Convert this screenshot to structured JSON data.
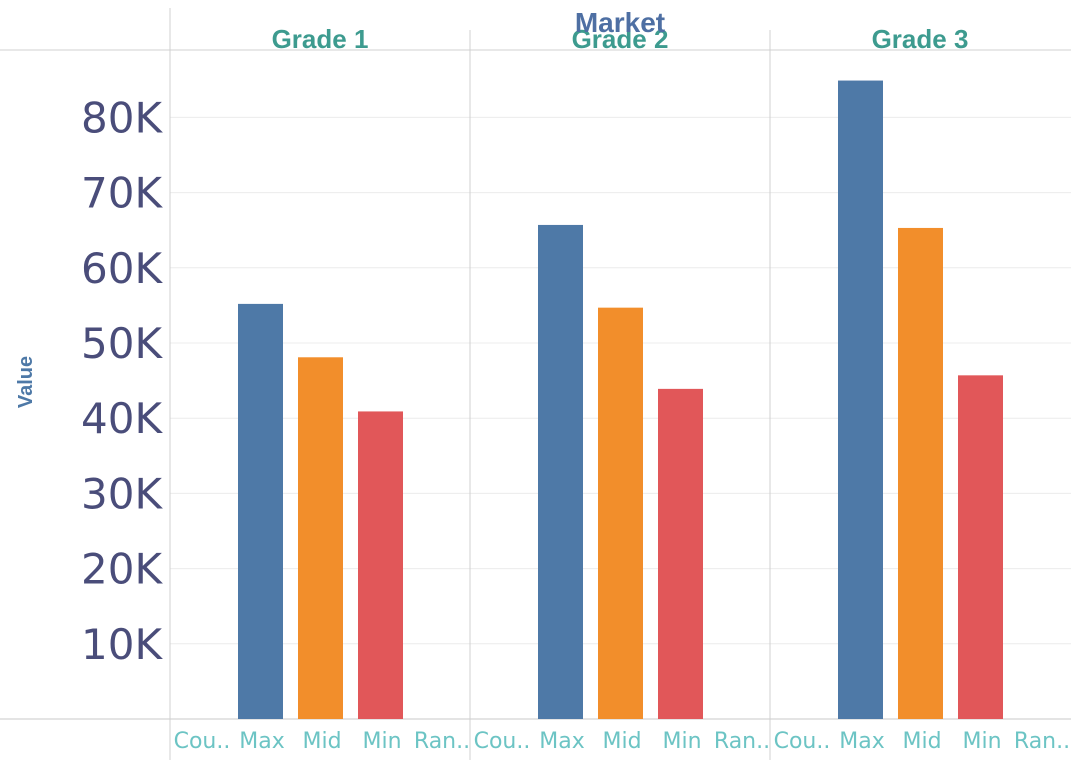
{
  "chart_data": {
    "type": "bar",
    "title": "Market",
    "ylabel": "Value",
    "xlabel": "",
    "ylim": [
      0,
      86000
    ],
    "yticks": [
      10000,
      20000,
      30000,
      40000,
      50000,
      60000,
      70000,
      80000
    ],
    "ytick_labels": [
      "10K",
      "20K",
      "30K",
      "40K",
      "50K",
      "60K",
      "70K",
      "80K"
    ],
    "grid": true,
    "categories": [
      "Cou..",
      "Max",
      "Mid",
      "Min",
      "Ran.."
    ],
    "category_colors": {
      "Max": "#4e79a7",
      "Mid": "#f28e2b",
      "Min": "#e15759"
    },
    "panels": [
      {
        "title": "Grade 1",
        "values": {
          "Max": 55200,
          "Mid": 48100,
          "Min": 40900
        }
      },
      {
        "title": "Grade 2",
        "values": {
          "Max": 65700,
          "Mid": 54700,
          "Min": 43900
        }
      },
      {
        "title": "Grade 3",
        "values": {
          "Max": 84900,
          "Mid": 65300,
          "Min": 45700
        }
      }
    ]
  }
}
